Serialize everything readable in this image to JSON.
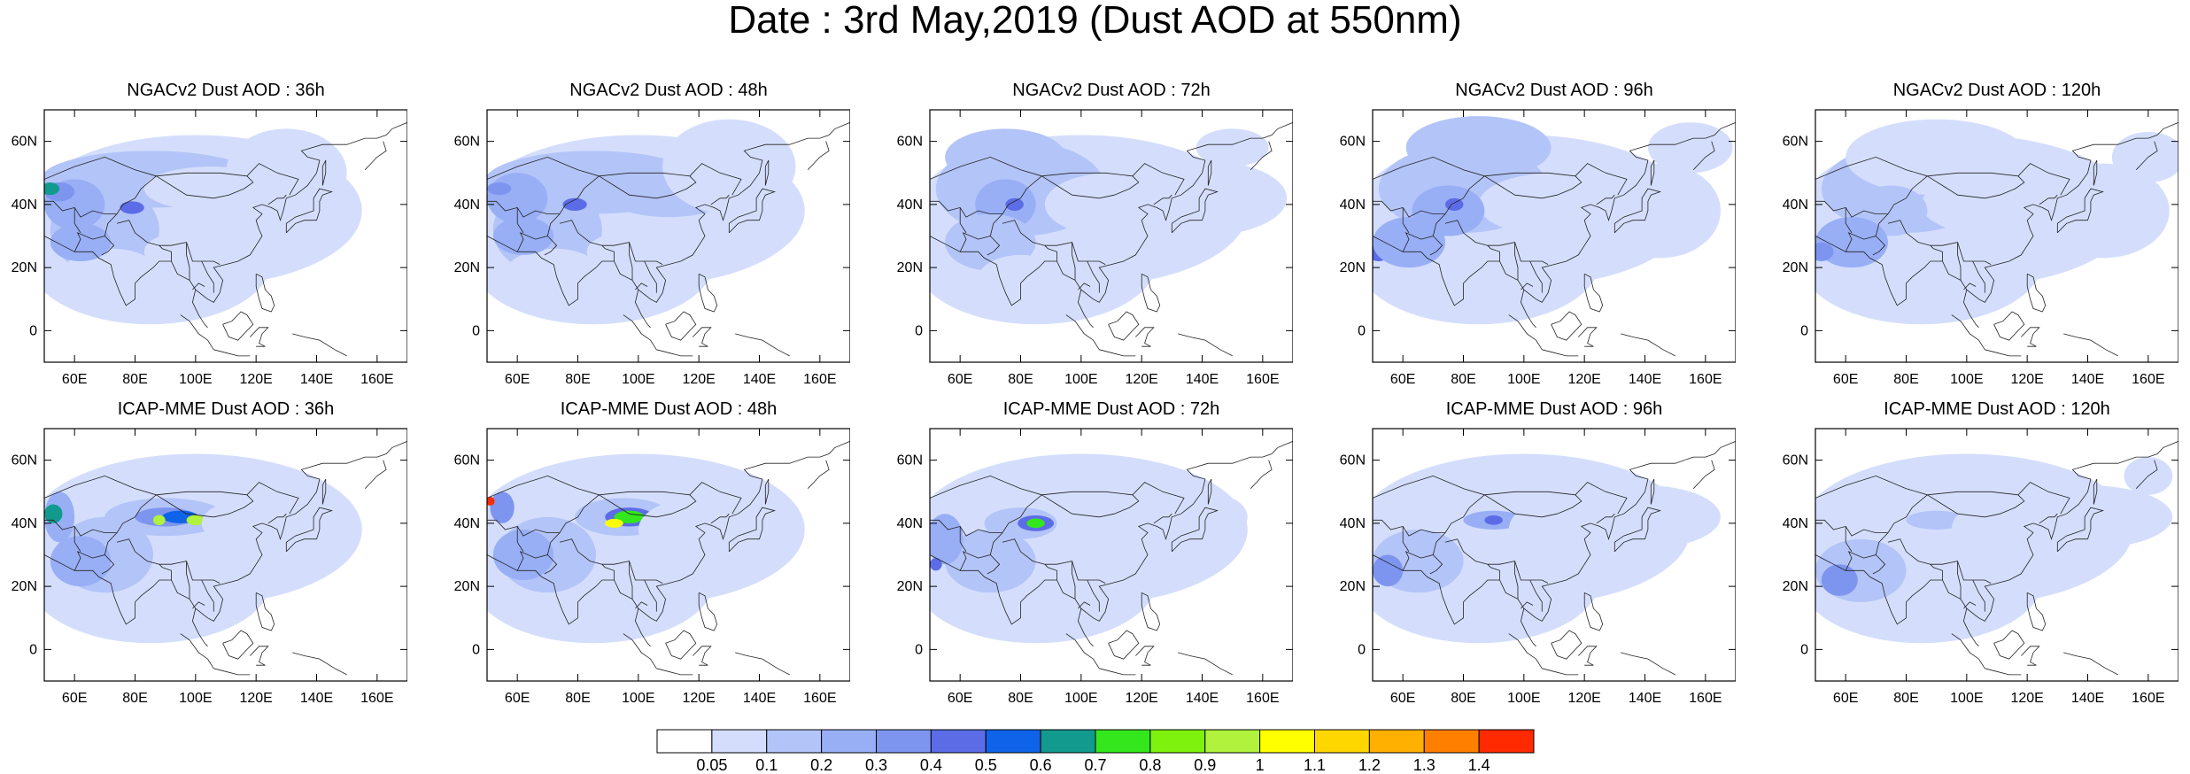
{
  "title": "Date : 3rd May,2019 (Dust AOD at 550nm)",
  "lat_labels": [
    "60N",
    "40N",
    "20N",
    "0"
  ],
  "lon_labels": [
    "60E",
    "80E",
    "100E",
    "120E",
    "140E",
    "160E"
  ],
  "panels": [
    {
      "title": "NGACv2 Dust AOD : 36h",
      "model": "NGACv2",
      "lead": "36h"
    },
    {
      "title": "NGACv2 Dust AOD : 48h",
      "model": "NGACv2",
      "lead": "48h"
    },
    {
      "title": "NGACv2 Dust AOD : 72h",
      "model": "NGACv2",
      "lead": "72h"
    },
    {
      "title": "NGACv2 Dust AOD : 96h",
      "model": "NGACv2",
      "lead": "96h"
    },
    {
      "title": "NGACv2 Dust AOD : 120h",
      "model": "NGACv2",
      "lead": "120h"
    },
    {
      "title": "ICAP-MME Dust AOD : 36h",
      "model": "ICAP-MME",
      "lead": "36h"
    },
    {
      "title": "ICAP-MME Dust AOD : 48h",
      "model": "ICAP-MME",
      "lead": "48h"
    },
    {
      "title": "ICAP-MME Dust AOD : 72h",
      "model": "ICAP-MME",
      "lead": "72h"
    },
    {
      "title": "ICAP-MME Dust AOD : 96h",
      "model": "ICAP-MME",
      "lead": "96h"
    },
    {
      "title": "ICAP-MME Dust AOD : 120h",
      "model": "ICAP-MME",
      "lead": "120h"
    }
  ],
  "colorbar": {
    "labels": [
      "0.05",
      "0.1",
      "0.2",
      "0.3",
      "0.4",
      "0.5",
      "0.6",
      "0.7",
      "0.8",
      "0.9",
      "1",
      "1.1",
      "1.2",
      "1.3",
      "1.4"
    ],
    "colors": [
      "#ffffff",
      "#d4defc",
      "#b3c4f8",
      "#98aff6",
      "#7e95f0",
      "#5c6ce6",
      "#0f63e8",
      "#139a8e",
      "#34e61c",
      "#7ef20c",
      "#b0f23c",
      "#ffff00",
      "#ffd700",
      "#ffb000",
      "#ff7f00",
      "#ff2a00"
    ]
  }
}
